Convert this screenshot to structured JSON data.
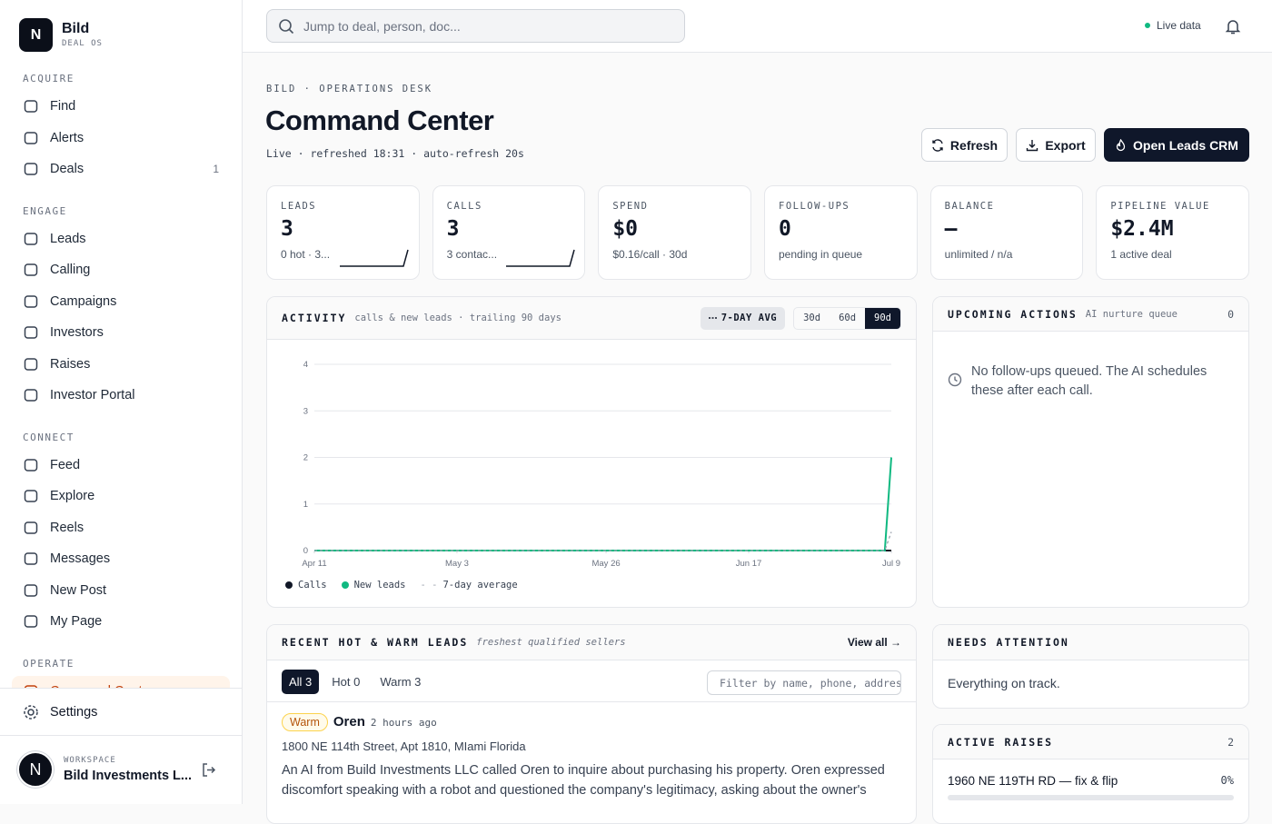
{
  "sidebar": {
    "logo": "N",
    "brand": "Bild",
    "tagline": "DEAL OS",
    "sections": [
      {
        "title": "ACQUIRE",
        "items": [
          {
            "label": "Find"
          },
          {
            "label": "Alerts"
          },
          {
            "label": "Deals",
            "badge": "1"
          }
        ]
      },
      {
        "title": "ENGAGE",
        "items": [
          {
            "label": "Leads"
          },
          {
            "label": "Calling"
          },
          {
            "label": "Campaigns"
          },
          {
            "label": "Investors"
          },
          {
            "label": "Raises"
          },
          {
            "label": "Investor Portal"
          }
        ]
      },
      {
        "title": "CONNECT",
        "items": [
          {
            "label": "Feed"
          },
          {
            "label": "Explore"
          },
          {
            "label": "Reels"
          },
          {
            "label": "Messages"
          },
          {
            "label": "New Post"
          },
          {
            "label": "My Page"
          }
        ]
      },
      {
        "title": "OPERATE",
        "items": [
          {
            "label": "Command Center",
            "active": true
          }
        ]
      }
    ],
    "settings": "Settings",
    "workspace_avatar": "N",
    "workspace_label": "WORKSPACE",
    "workspace_name": "Bild Investments L..."
  },
  "header": {
    "search_placeholder": "Jump to deal, person, doc...",
    "live": "Live data"
  },
  "page": {
    "eyebrow": "BILD · OPERATIONS DESK",
    "title": "Command Center",
    "status": "Live · refreshed 18:31 · auto-refresh 20s",
    "buttons": [
      "Refresh",
      "Export",
      "Open Leads CRM"
    ]
  },
  "kpis": [
    {
      "label": "LEADS",
      "value": "3",
      "sub": "0 hot · 3..."
    },
    {
      "label": "CALLS",
      "value": "3",
      "sub": "3 contac..."
    },
    {
      "label": "SPEND",
      "value": "$0",
      "sub": "$0.16/call · 30d"
    },
    {
      "label": "FOLLOW-UPS",
      "value": "0",
      "sub": "pending in queue"
    },
    {
      "label": "BALANCE",
      "value": "—",
      "sub": "unlimited / n/a"
    },
    {
      "label": "PIPELINE VALUE",
      "value": "$2.4M",
      "sub": "1 active deal"
    }
  ],
  "activity": {
    "title": "ACTIVITY",
    "subtitle": "calls & new leads · trailing 90 days",
    "toggle": "7-DAY AVG",
    "ranges": [
      "30d",
      "60d",
      "90d"
    ],
    "active_range": "90d"
  },
  "chart_data": {
    "type": "line",
    "x": [
      0,
      88,
      89
    ],
    "series": [
      {
        "name": "Calls",
        "color": "#111827",
        "values": [
          0,
          0,
          0
        ]
      },
      {
        "name": "New leads",
        "color": "#10b981",
        "values": [
          0,
          0,
          2
        ]
      },
      {
        "name": "7-day average",
        "color": "#9ca3af",
        "dashed": true,
        "values": [
          0,
          0,
          0.4
        ]
      }
    ],
    "xlim": [
      0,
      89
    ],
    "xticks": [
      {
        "value": 0,
        "label": "Apr 11"
      },
      {
        "value": 22,
        "label": "May 3"
      },
      {
        "value": 45,
        "label": "May 26"
      },
      {
        "value": 67,
        "label": "Jun 17"
      },
      {
        "value": 89,
        "label": "Jul 9"
      }
    ],
    "ylim": [
      0,
      4
    ],
    "yticks": [
      0,
      1,
      2,
      3,
      4
    ],
    "grid": true
  },
  "upcoming": {
    "title": "UPCOMING ACTIONS",
    "subtitle": "AI nurture queue",
    "count": "0",
    "empty": "No follow-ups queued. The AI schedules these after each call."
  },
  "leads": {
    "title": "RECENT HOT & WARM LEADS",
    "subtitle": "freshest qualified sellers",
    "view_all": "View all →",
    "tabs": [
      "All 3",
      "Hot 0",
      "Warm 3"
    ],
    "filter_placeholder": "Filter by name, phone, address",
    "items": [
      {
        "tag": "Warm",
        "name": "Oren",
        "time": "2 hours ago",
        "address": "1800 NE 114th Street, Apt 1810, MIami Florida",
        "summary": "An AI from Build Investments LLC called Oren to inquire about purchasing his property. Oren expressed discomfort speaking with a robot and questioned the company's legitimacy, asking about the owner's"
      }
    ]
  },
  "attention": {
    "title": "NEEDS ATTENTION",
    "text": "Everything on track."
  },
  "raises": {
    "title": "ACTIVE RAISES",
    "count": "2",
    "items": [
      {
        "name": "1960 NE 119TH RD — fix & flip",
        "pct": "0%"
      }
    ]
  }
}
